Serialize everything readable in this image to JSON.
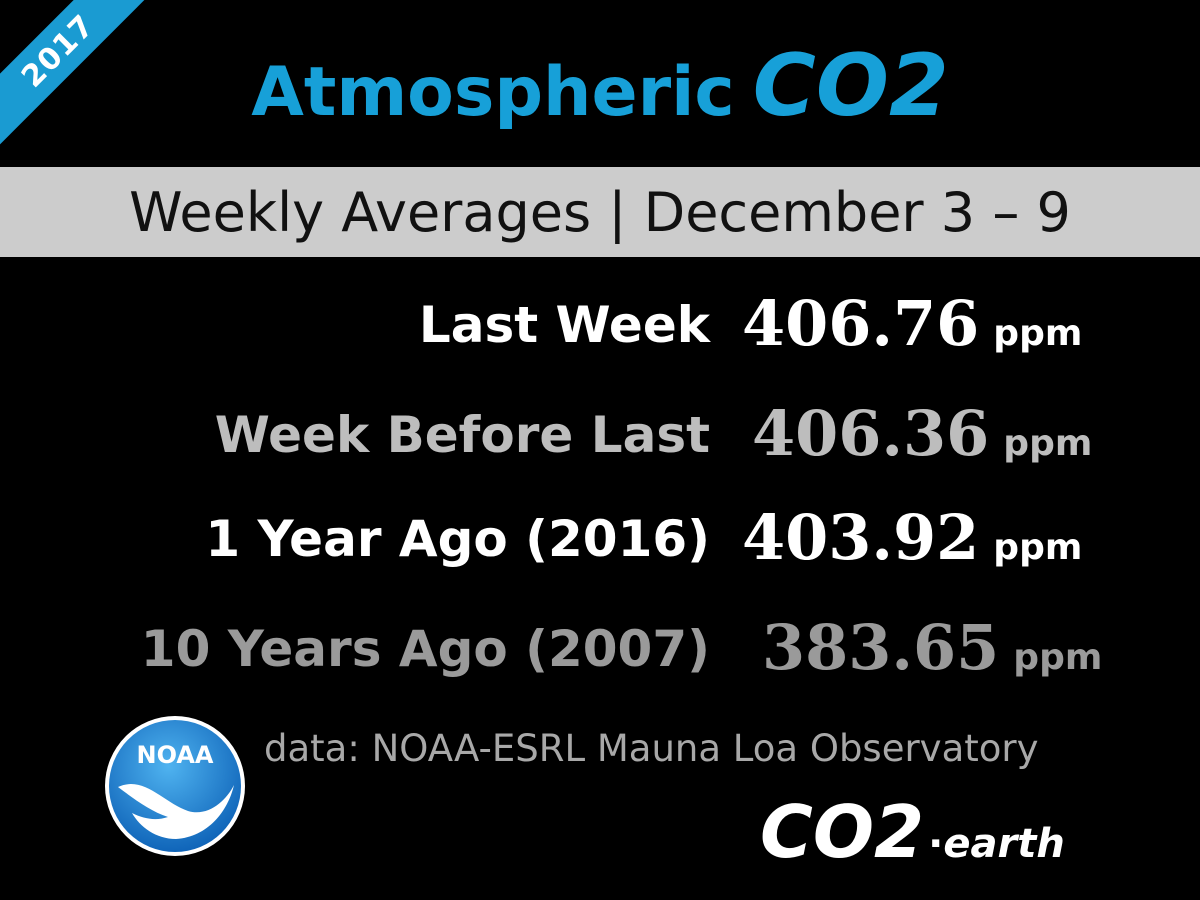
{
  "ribbon": {
    "year": "2017"
  },
  "title": {
    "main": "Atmospheric",
    "emphasis": "CO2"
  },
  "band": {
    "text": "Weekly Averages  | December 3 – 9"
  },
  "rows": [
    {
      "label": "Last Week",
      "value": "406.76",
      "unit": "ppm"
    },
    {
      "label": "Week Before Last",
      "value": "406.36",
      "unit": "ppm"
    },
    {
      "label": "1 Year Ago  (2016)",
      "value": "403.92",
      "unit": "ppm"
    },
    {
      "label": "10 Years Ago  (2007)",
      "value": "383.65",
      "unit": "ppm"
    }
  ],
  "footer": {
    "source": "data: NOAA-ESRL Mauna Loa Observatory",
    "noaa_logo_text": "NOAA",
    "co2earth": {
      "big": "CO2",
      "dot": "·",
      "small": "earth"
    }
  },
  "colors": {
    "accent": "#17a0d8",
    "band": "#cccccc",
    "background": "#000000"
  },
  "icons": {
    "noaa": "noaa-logo-icon"
  }
}
